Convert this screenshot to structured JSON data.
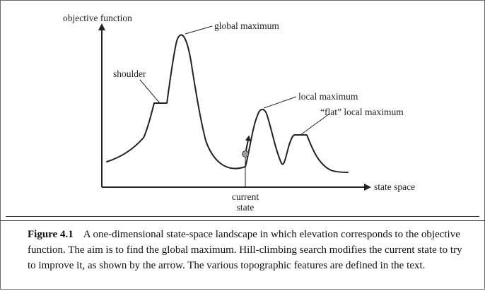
{
  "diagram": {
    "y_axis_label": "objective function",
    "x_axis_label": "state space",
    "labels": {
      "global_maximum": "global maximum",
      "shoulder": "shoulder",
      "local_maximum": "local maximum",
      "flat_local_maximum": "“flat” local maximum",
      "current_state_line1": "current",
      "current_state_line2": "state"
    },
    "colors": {
      "line": "#222222",
      "current_state_marker": "#9b9b9b",
      "frame": "#6a6a6a"
    }
  },
  "caption": {
    "label": "Figure 4.1",
    "text": "A one-dimensional state-space landscape in which elevation corresponds to the objective function. The aim is to find the global maximum. Hill-climbing search modifies the current state to try to improve it, as shown by the arrow. The various topographic features are defined in the text."
  }
}
